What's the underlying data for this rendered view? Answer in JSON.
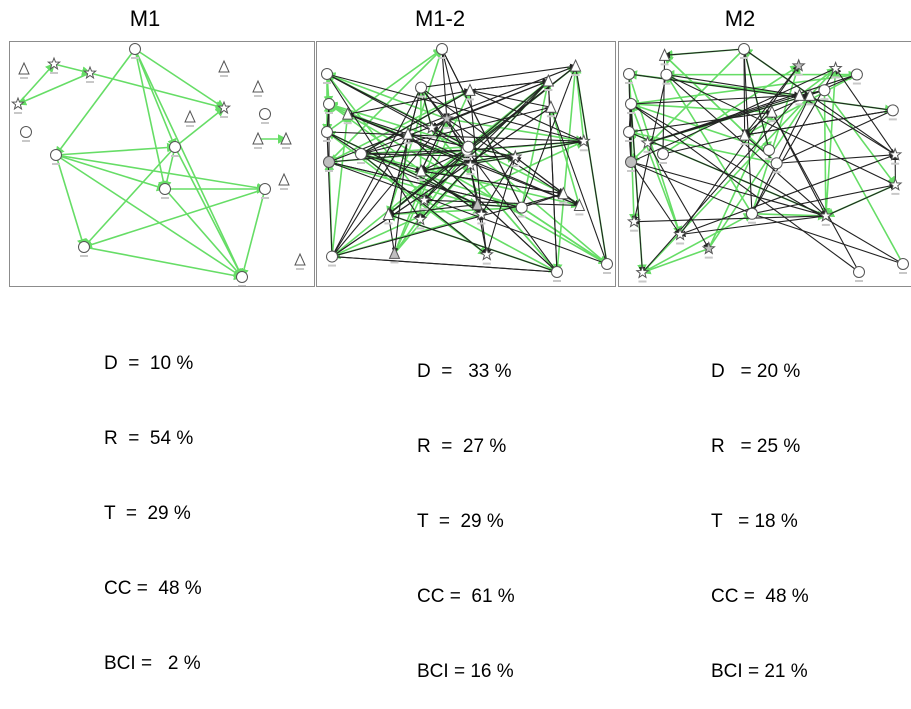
{
  "panels": [
    {
      "title": "M1",
      "stats": [
        "D  =  10 %",
        "R  =  54 %",
        "T  =  29 %",
        "CC =  48 %",
        "BCI =   2 %"
      ],
      "edge_colors": {
        "green": "#66dd66",
        "black": "#222222"
      }
    },
    {
      "title": "M1-2",
      "stats": [
        "D  =   33 %",
        "R  =  27 %",
        "T  =  29 %",
        "CC =  61 %",
        "BCI = 16 %"
      ],
      "edge_colors": {
        "green": "#66dd66",
        "black": "#222222"
      }
    },
    {
      "title": "M2",
      "stats": [
        "D   = 20 %",
        "R   = 25 %",
        "T   = 18 %",
        "CC =  48 %",
        "BCI = 21 %"
      ],
      "edge_colors": {
        "green": "#66dd66",
        "black": "#222222"
      }
    }
  ]
}
